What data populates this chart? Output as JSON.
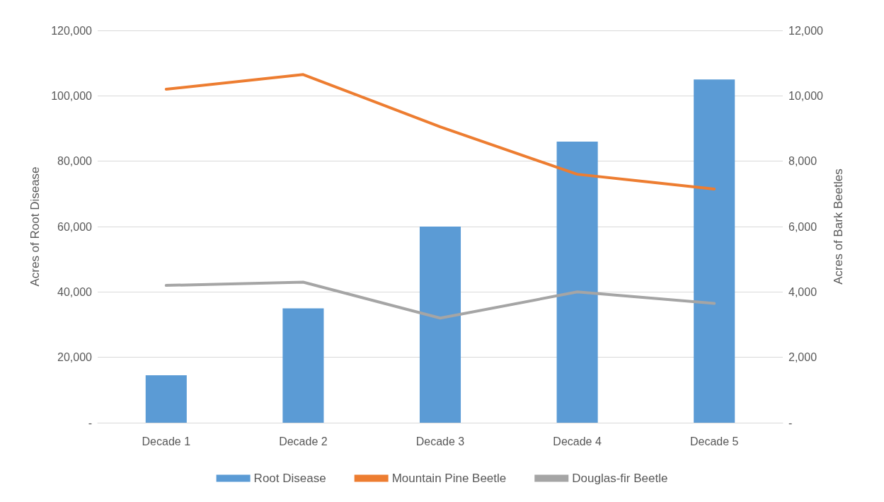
{
  "chart_data": {
    "type": "bar",
    "ylabel": "Acres of Root Disease",
    "y2label": "Acres of Bark Beetles",
    "categories": [
      "Decade 1",
      "Decade 2",
      "Decade 3",
      "Decade 4",
      "Decade 5"
    ],
    "series": [
      {
        "name": "Root Disease",
        "color": "#5b9bd5",
        "values": [
          14500,
          35000,
          60000,
          86000,
          105000
        ]
      },
      {
        "name": "Mountain Pine Beetle",
        "type": "line",
        "axis": "y2",
        "color": "#ed7d31",
        "values": [
          10200,
          10650,
          9050,
          7600,
          7150
        ]
      },
      {
        "name": "Douglas-fir Beetle",
        "type": "line",
        "axis": "y2",
        "color": "#a5a5a5",
        "values": [
          4200,
          4300,
          3200,
          4000,
          3650
        ]
      }
    ],
    "ylim": [
      0,
      120000
    ],
    "yticks": [
      {
        "value": 0,
        "label": "-"
      },
      {
        "value": 20000,
        "label": "20,000"
      },
      {
        "value": 40000,
        "label": "40,000"
      },
      {
        "value": 60000,
        "label": "60,000"
      },
      {
        "value": 80000,
        "label": "80,000"
      },
      {
        "value": 100000,
        "label": "100,000"
      },
      {
        "value": 120000,
        "label": "120,000"
      }
    ],
    "y2lim": [
      0,
      12000
    ],
    "y2ticks": [
      {
        "value": 0,
        "label": "-"
      },
      {
        "value": 2000,
        "label": "2,000"
      },
      {
        "value": 4000,
        "label": "4,000"
      },
      {
        "value": 6000,
        "label": "6,000"
      },
      {
        "value": 8000,
        "label": "8,000"
      },
      {
        "value": 10000,
        "label": "10,000"
      },
      {
        "value": 12000,
        "label": "12,000"
      }
    ],
    "grid": "y",
    "legend": "bottom",
    "marker": "none",
    "line_style": "solid"
  }
}
